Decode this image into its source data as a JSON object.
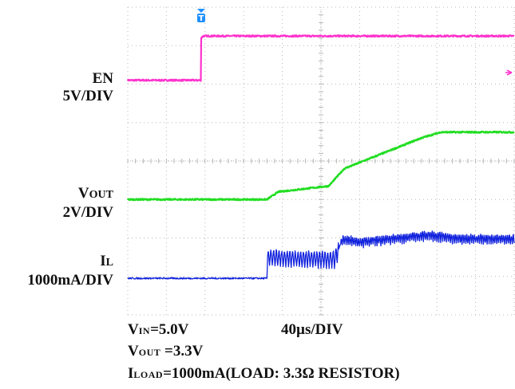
{
  "chart_data": {
    "type": "line",
    "title": "",
    "timebase": "40µs/DIV",
    "divisions": {
      "x": 10,
      "y": 8
    },
    "trigger_marker": "T",
    "channels": [
      {
        "name": "EN",
        "scale": "5V/DIV",
        "color": "#ff33cc",
        "time_div": [
          0,
          1.9,
          1.9,
          1.95,
          10
        ],
        "level_div": [
          6.1,
          6.1,
          7.2,
          7.25,
          7.25
        ],
        "noise": 0.04
      },
      {
        "name": "VOUT",
        "scale": "2V/DIV",
        "color": "#22dd22",
        "time_div": [
          0,
          3.6,
          3.9,
          5.2,
          5.6,
          7.6,
          8.1,
          10
        ],
        "level_div": [
          3.0,
          3.0,
          3.2,
          3.35,
          3.8,
          4.6,
          4.75,
          4.75
        ],
        "noise": 0.04
      },
      {
        "name": "IL",
        "scale": "1000mA/DIV",
        "color": "#1122dd",
        "time_div": [
          0,
          3.6,
          3.62,
          5.35,
          5.55,
          5.7,
          6.0,
          7.8,
          8.6,
          10
        ],
        "level_div": [
          0.95,
          0.95,
          1.5,
          1.45,
          1.95,
          1.95,
          1.9,
          2.08,
          1.98,
          1.98
        ],
        "ripple": [
          {
            "from_div": 3.6,
            "to_div": 5.45,
            "amp_div": 0.45,
            "period_div": 0.07
          },
          {
            "from_div": 5.5,
            "to_div": 10,
            "amp_div": 0.25,
            "period_div": 0.05
          }
        ]
      }
    ]
  },
  "labels": {
    "en_name": "EN",
    "en_scale": "5V/DIV",
    "vout_main": "V",
    "vout_sub": "OUT",
    "vout_scale": "2V/DIV",
    "il_main": "I",
    "il_sub": "L",
    "il_scale": "1000mA/DIV"
  },
  "conditions": {
    "vin_main": "V",
    "vin_sub": "IN",
    "vin_value": "=5.0V",
    "timebase": "40µs/DIV",
    "vout_main": "V",
    "vout_sub": "OUT",
    "vout_value": " =3.3V",
    "iload_main": "I",
    "iload_sub": "LOAD",
    "iload_value": "=1000mA(LOAD: 3.3Ω RESISTOR)"
  },
  "colors": {
    "grid": "#b8b8b8",
    "en": "#ff33cc",
    "vout": "#22dd22",
    "il": "#1122dd",
    "trigger": "#1e90ff"
  }
}
